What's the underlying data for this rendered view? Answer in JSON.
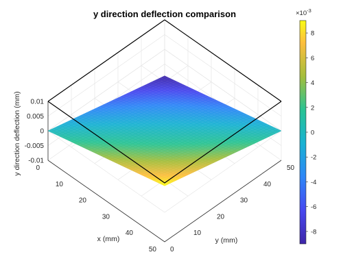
{
  "chart_data": {
    "type": "surface",
    "title": "y direction deflection comparison",
    "xlabel": "x (mm)",
    "ylabel": "y (mm)",
    "zlabel": "y direction deflection (mm)",
    "xlim": [
      0,
      50
    ],
    "ylim": [
      0,
      50
    ],
    "zlim": [
      -0.01,
      0.01
    ],
    "x_ticks": [
      "0",
      "10",
      "20",
      "30",
      "40",
      "50"
    ],
    "y_ticks": [
      "0",
      "10",
      "20",
      "30",
      "40",
      "50"
    ],
    "z_ticks": [
      "0.01",
      "0.005",
      "0",
      "-0.005",
      "-0.01"
    ],
    "colorbar": {
      "colormap": "parula",
      "range": [
        -0.009,
        0.009
      ],
      "exponent_label": "×10",
      "exponent_power": "-3",
      "ticks": [
        "8",
        "6",
        "4",
        "2",
        "0",
        "-2",
        "-4",
        "-6",
        "-8"
      ]
    },
    "surface_corners": [
      {
        "x": 0,
        "y": 0,
        "z": 0.0
      },
      {
        "x": 50,
        "y": 0,
        "z": 0.009
      },
      {
        "x": 50,
        "y": 50,
        "z": 0.0
      },
      {
        "x": 0,
        "y": 50,
        "z": -0.009
      }
    ],
    "grid": true
  }
}
